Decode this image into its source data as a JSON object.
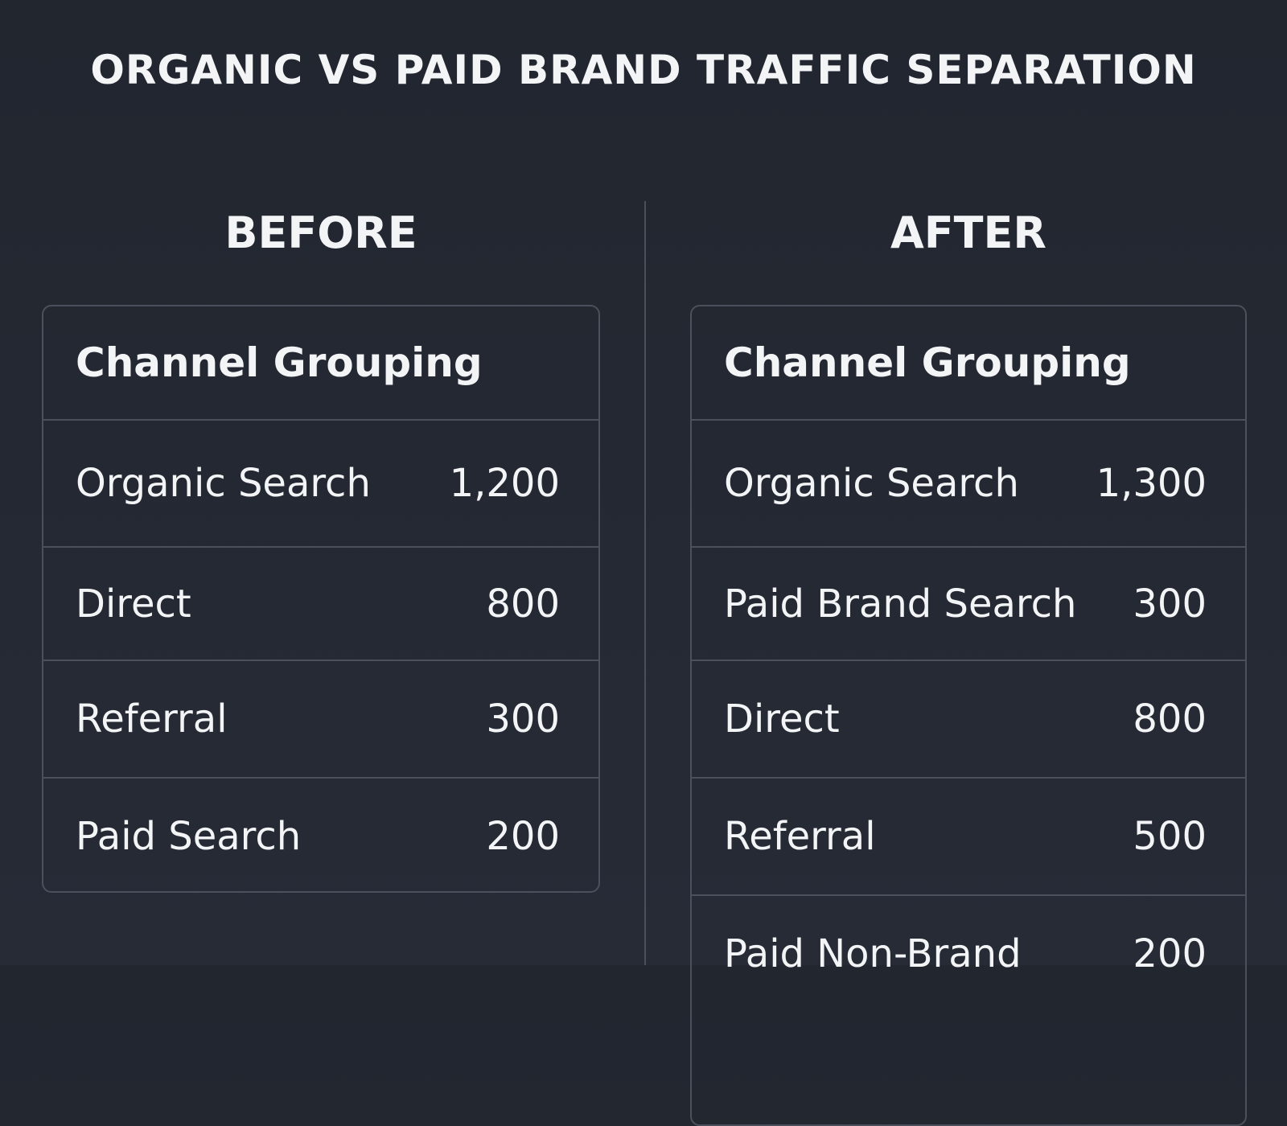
{
  "title": "ORGANIC VS PAID BRAND TRAFFIC SEPARATION",
  "panels": [
    {
      "heading": "BEFORE",
      "table": {
        "header": "Channel Grouping",
        "rows": [
          [
            "Organic Search",
            "1,200"
          ],
          [
            "Direct",
            "800"
          ],
          [
            "Referral",
            "300"
          ],
          [
            "Paid Search",
            "200"
          ]
        ]
      }
    },
    {
      "heading": "AFTER",
      "table": {
        "header": "Channel Grouping",
        "rows": [
          [
            "Organic Search",
            "1,300"
          ],
          [
            "Paid Brand Search",
            "300"
          ],
          [
            "Direct",
            "800"
          ],
          [
            "Referral",
            "500"
          ],
          [
            "Paid Non-Brand",
            "200"
          ]
        ]
      }
    }
  ]
}
